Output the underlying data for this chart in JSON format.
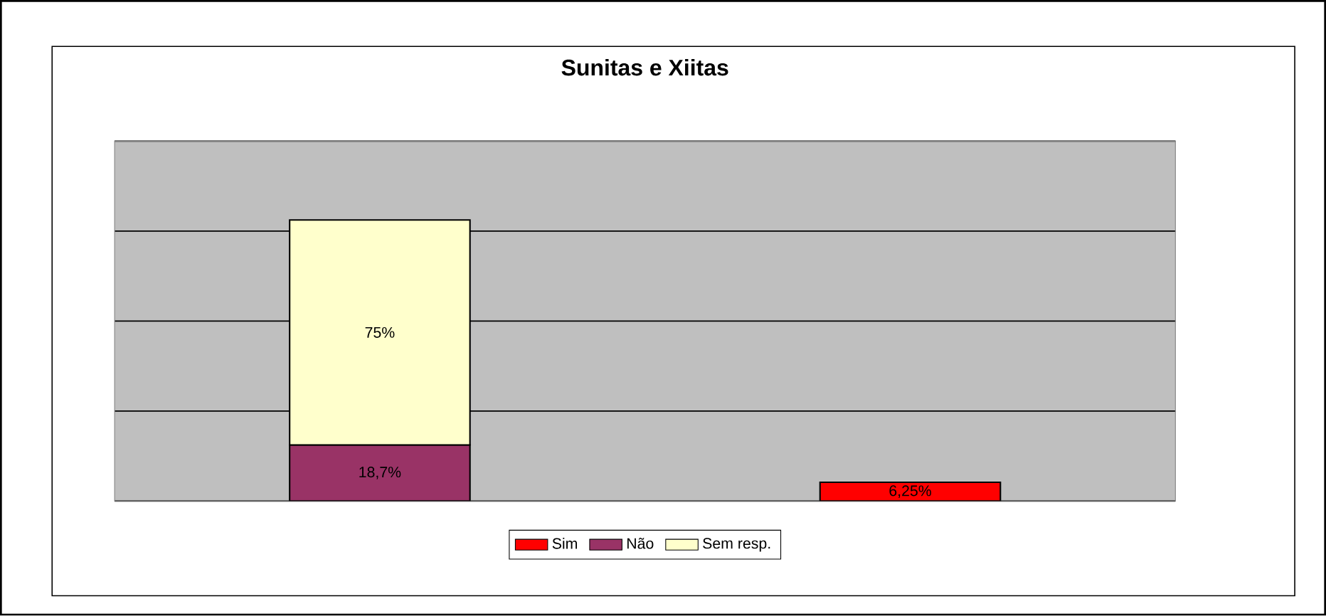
{
  "chart_data": {
    "type": "bar",
    "title": "Sunitas e Xiitas",
    "categories": [
      null,
      null
    ],
    "stacked": true,
    "ylim": [
      0,
      120
    ],
    "yticks": [
      {
        "value": 0,
        "label": null
      },
      {
        "value": 30,
        "label": null
      },
      {
        "value": 60,
        "label": null
      },
      {
        "value": 90,
        "label": null
      },
      {
        "value": 120,
        "label": null
      }
    ],
    "grid": "y",
    "legend": "bottom",
    "series": [
      {
        "name": "Sim",
        "color": "#ff0000",
        "values": [
          null,
          6.25
        ],
        "value_labels": [
          null,
          "6,25%"
        ]
      },
      {
        "name": "Não",
        "color": "#993366",
        "values": [
          18.7,
          null
        ],
        "value_labels": [
          "18,7%",
          null
        ]
      },
      {
        "name": "Sem resp.",
        "color": "#ffffcc",
        "values": [
          75,
          null
        ],
        "value_labels": [
          "75%",
          null
        ]
      }
    ]
  }
}
